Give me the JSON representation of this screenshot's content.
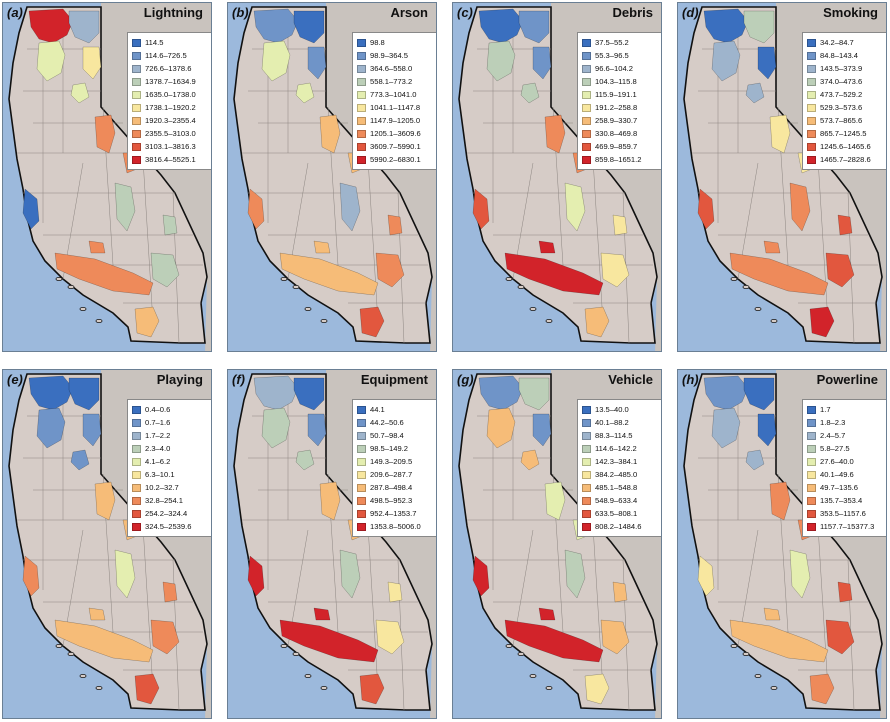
{
  "figure": {
    "panels": [
      {
        "letter": "(a)",
        "title": "Lightning",
        "legend": [
          "114.5",
          "114.6–726.5",
          "726.6–1378.6",
          "1378.7–1634.9",
          "1635.0–1738.0",
          "1738.1–1920.2",
          "1920.3–2355.4",
          "2355.5–3103.0",
          "3103.1–3816.3",
          "3816.4–5525.1"
        ],
        "region_classes": {
          "nw": 9,
          "nc": 4,
          "ne": 2,
          "east": 5,
          "sierra_n": 7,
          "sierra_s": 3,
          "coast_c": 0,
          "coast_s": 7,
          "south": 6,
          "se": 3
        }
      },
      {
        "letter": "(b)",
        "title": "Arson",
        "legend": [
          "98.8",
          "98.9–364.5",
          "364.6–558.0",
          "558.1–773.2",
          "773.3–1041.0",
          "1041.1–1147.8",
          "1147.9–1205.0",
          "1205.1–3609.6",
          "3609.7–5990.1",
          "5990.2–6830.1"
        ],
        "region_classes": {
          "nw": 1,
          "nc": 4,
          "ne": 0,
          "east": 1,
          "sierra_n": 6,
          "sierra_s": 2,
          "coast_c": 7,
          "coast_s": 6,
          "south": 8,
          "se": 7
        }
      },
      {
        "letter": "(c)",
        "title": "Debris",
        "legend": [
          "37.5–55.2",
          "55.3–96.5",
          "96.6–104.2",
          "104.3–115.8",
          "115.9–191.1",
          "191.2–258.8",
          "258.9–330.7",
          "330.8–469.8",
          "469.9–859.7",
          "859.8–1651.2"
        ],
        "region_classes": {
          "nw": 0,
          "nc": 3,
          "ne": 1,
          "east": 1,
          "sierra_n": 7,
          "sierra_s": 4,
          "coast_c": 8,
          "coast_s": 9,
          "south": 6,
          "se": 5
        }
      },
      {
        "letter": "(d)",
        "title": "Smoking",
        "legend": [
          "34.2–84.7",
          "84.8–143.4",
          "143.5–373.9",
          "374.0–473.6",
          "473.7–529.2",
          "529.3–573.6",
          "573.7–865.6",
          "865.7–1245.5",
          "1245.6–1465.6",
          "1465.7–2828.6"
        ],
        "region_classes": {
          "nw": 0,
          "nc": 2,
          "ne": 3,
          "east": 0,
          "sierra_n": 5,
          "sierra_s": 7,
          "coast_c": 8,
          "coast_s": 7,
          "south": 9,
          "se": 8
        }
      },
      {
        "letter": "(e)",
        "title": "Playing",
        "legend": [
          "0.4–0.6",
          "0.7–1.6",
          "1.7–2.2",
          "2.3–4.0",
          "4.1–6.2",
          "6.3–10.1",
          "10.2–32.7",
          "32.8–254.1",
          "254.2–324.4",
          "324.5–2539.6"
        ],
        "region_classes": {
          "nw": 0,
          "nc": 1,
          "ne": 0,
          "east": 1,
          "sierra_n": 6,
          "sierra_s": 4,
          "coast_c": 7,
          "coast_s": 6,
          "south": 8,
          "se": 7
        }
      },
      {
        "letter": "(f)",
        "title": "Equipment",
        "legend": [
          "44.1",
          "44.2–50.6",
          "50.7–98.4",
          "98.5–149.2",
          "149.3–209.5",
          "209.6–287.7",
          "287.8–498.4",
          "498.5–952.3",
          "952.4–1353.7",
          "1353.8–5006.0"
        ],
        "region_classes": {
          "nw": 2,
          "nc": 3,
          "ne": 0,
          "east": 1,
          "sierra_n": 6,
          "sierra_s": 3,
          "coast_c": 9,
          "coast_s": 9,
          "south": 8,
          "se": 5
        }
      },
      {
        "letter": "(g)",
        "title": "Vehicle",
        "legend": [
          "13.5–40.0",
          "40.1–88.2",
          "88.3–114.5",
          "114.6–142.2",
          "142.3–384.1",
          "384.2–485.0",
          "485.1–548.8",
          "548.9–633.4",
          "633.5–808.1",
          "808.2–1484.6"
        ],
        "region_classes": {
          "nw": 1,
          "nc": 6,
          "ne": 3,
          "east": 1,
          "sierra_n": 4,
          "sierra_s": 3,
          "coast_c": 9,
          "coast_s": 9,
          "south": 5,
          "se": 6
        }
      },
      {
        "letter": "(h)",
        "title": "Powerline",
        "legend": [
          "1.7",
          "1.8–2.3",
          "2.4–5.7",
          "5.8–27.5",
          "27.6–40.0",
          "40.1–49.6",
          "49.7–135.6",
          "135.7–353.4",
          "353.5–1157.6",
          "1157.7–15377.3"
        ],
        "region_classes": {
          "nw": 1,
          "nc": 2,
          "ne": 0,
          "east": 0,
          "sierra_n": 7,
          "sierra_s": 4,
          "coast_c": 5,
          "coast_s": 6,
          "south": 7,
          "se": 8
        }
      }
    ],
    "palette": [
      "#3a6fbf",
      "#6f94c8",
      "#9eb4cc",
      "#bccfb8",
      "#e4eeb0",
      "#f8e79f",
      "#f6bc78",
      "#ee8a5a",
      "#e2573e",
      "#d2232a"
    ],
    "colors": {
      "ocean": "#9cb9dc",
      "land": "#d6ccc7",
      "outside_land": "#c9c3be",
      "border": "#111111"
    }
  }
}
